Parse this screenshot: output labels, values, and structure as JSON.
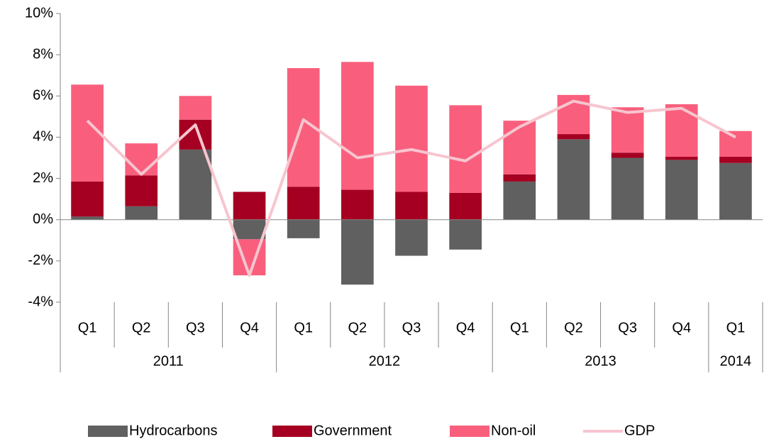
{
  "chart_data": {
    "type": "bar",
    "stacked": true,
    "categories": [
      "Q1",
      "Q2",
      "Q3",
      "Q4",
      "Q1",
      "Q2",
      "Q3",
      "Q4",
      "Q1",
      "Q2",
      "Q3",
      "Q4",
      "Q1"
    ],
    "category_groups": [
      {
        "name": "2011",
        "count": 4
      },
      {
        "name": "2012",
        "count": 4
      },
      {
        "name": "2013",
        "count": 4
      },
      {
        "name": "2014",
        "count": 1
      }
    ],
    "series": [
      {
        "name": "Hydrocarbons",
        "color": "#606060",
        "values": [
          0.15,
          0.65,
          3.4,
          -0.95,
          -0.9,
          -3.15,
          -1.75,
          -1.45,
          1.85,
          3.9,
          3.0,
          2.9,
          2.75
        ]
      },
      {
        "name": "Government",
        "color": "#a50021",
        "values": [
          1.7,
          1.5,
          1.45,
          1.35,
          1.6,
          1.45,
          1.35,
          1.3,
          0.35,
          0.25,
          0.25,
          0.15,
          0.3
        ]
      },
      {
        "name": "Non-oil",
        "color": "#f95f7d",
        "values": [
          4.7,
          1.55,
          1.15,
          -1.75,
          5.75,
          6.2,
          5.15,
          4.25,
          2.6,
          1.9,
          2.2,
          2.55,
          1.25
        ]
      },
      {
        "name": "GDP",
        "color": "#f7c5cf",
        "type": "line",
        "values": [
          4.8,
          2.2,
          4.6,
          -2.7,
          4.85,
          3.0,
          3.4,
          2.85,
          4.5,
          5.75,
          5.2,
          5.4,
          4.0
        ]
      }
    ],
    "ylim": [
      -4,
      10
    ],
    "yticks": [
      {
        "value": -4,
        "label": "-4%"
      },
      {
        "value": -2,
        "label": "-2%"
      },
      {
        "value": 0,
        "label": "0%"
      },
      {
        "value": 2,
        "label": "2%"
      },
      {
        "value": 4,
        "label": "4%"
      },
      {
        "value": 6,
        "label": "6%"
      },
      {
        "value": 8,
        "label": "8%"
      },
      {
        "value": 10,
        "label": "10%"
      }
    ],
    "grid": false,
    "legend": "bottom"
  }
}
